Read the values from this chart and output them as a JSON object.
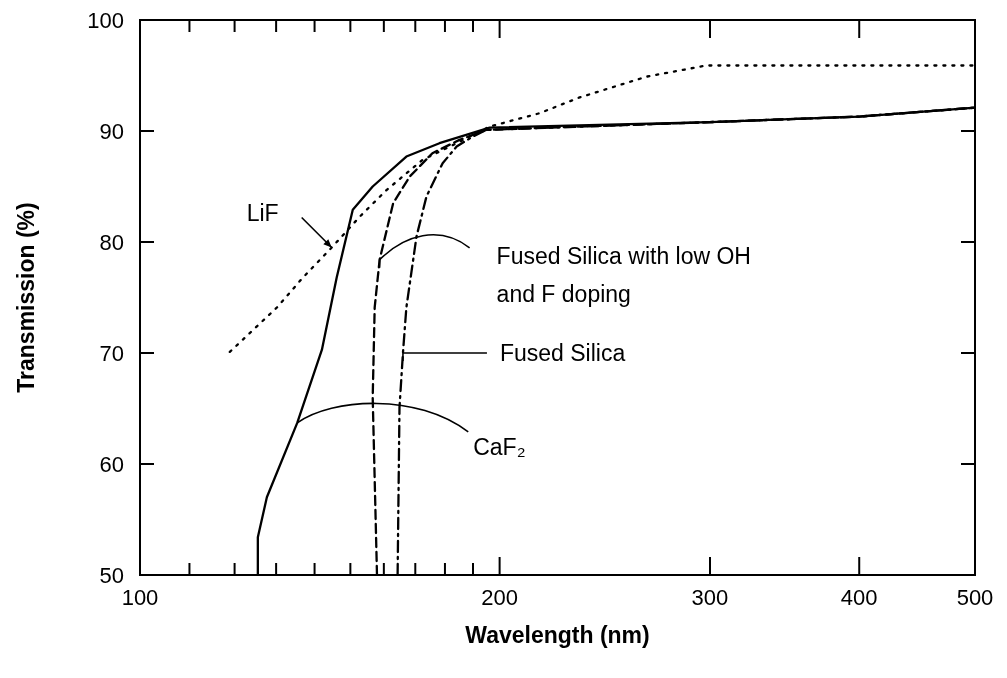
{
  "chart_data": {
    "type": "line",
    "xlabel": "Wavelength (nm)",
    "ylabel": "Transmission (%)",
    "log": "x",
    "xlim": [
      100,
      500
    ],
    "ylim": [
      50,
      100
    ],
    "xticks": [
      100,
      {
        "value": 110,
        "label": null
      },
      {
        "value": 120,
        "label": null
      },
      {
        "value": 130,
        "label": null
      },
      {
        "value": 140,
        "label": null
      },
      {
        "value": 150,
        "label": null
      },
      {
        "value": 160,
        "label": null
      },
      {
        "value": 170,
        "label": null
      },
      {
        "value": 180,
        "label": null
      },
      {
        "value": 190,
        "label": null
      },
      200,
      300,
      400,
      500
    ],
    "yticks": [
      50,
      60,
      70,
      80,
      90,
      100
    ],
    "annotations": [
      {
        "text": "CaF₂",
        "x": 135.4,
        "y": 63.7
      },
      {
        "text": "LiF",
        "x": 144.7,
        "y": 79.5
      },
      {
        "text": "Fused Silica with low OH and F doping",
        "x": 158.7,
        "y": 78.4
      },
      "Fused Silica"
    ],
    "series": [
      {
        "color": "#000000",
        "line_style": "solid",
        "x": [
          125.5,
          125.5,
          127.7,
          135.4,
          142.0,
          146.1,
          150.7,
          156.6,
          167.1,
          178.1,
          196.2,
          300,
          400,
          500
        ],
        "values": [
          50,
          53.4,
          57.0,
          63.7,
          70.3,
          76.8,
          82.9,
          85.0,
          87.7,
          88.9,
          90.3,
          90.8,
          91.3,
          92.1
        ]
      },
      {
        "color": "#000000",
        "line_style": "dotted",
        "x": [
          118.9,
          130.2,
          136.9,
          144.7,
          152.8,
          160.9,
          172.4,
          184.1,
          196.2,
          216,
          233,
          265.6,
          297.9,
          400,
          500
        ],
        "values": [
          70.1,
          74.1,
          76.8,
          79.5,
          82.3,
          84.7,
          87.4,
          88.9,
          90.4,
          91.6,
          93.0,
          94.9,
          95.9,
          95.9,
          95.9
        ]
      },
      {
        "color": "#000000",
        "line_style": "dashed",
        "x": [
          157.9,
          156.6,
          157.2,
          158.7,
          162.9,
          168.2,
          175.7,
          185.1,
          194.9,
          300,
          400,
          500
        ],
        "values": [
          50,
          66.0,
          74.1,
          78.4,
          83.5,
          85.9,
          88.0,
          89.2,
          90.1,
          90.8,
          91.3,
          92.1
        ]
      },
      {
        "color": "#000000",
        "line_style": "dashdot",
        "x": [
          164.3,
          164.9,
          166,
          167.1,
          170.4,
          173.7,
          179.2,
          184.1,
          189.9,
          194.9,
          300,
          400,
          500
        ],
        "values": [
          50,
          65.1,
          70,
          74.1,
          80.5,
          84.1,
          87.1,
          88.6,
          89.5,
          90.1,
          90.8,
          91.3,
          92.1
        ]
      }
    ]
  }
}
